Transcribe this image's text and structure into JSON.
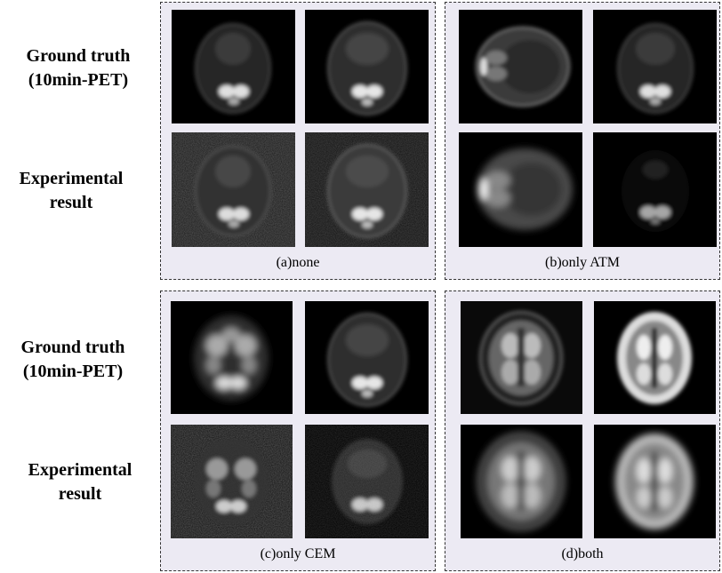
{
  "row_labels": {
    "top_ground_truth": [
      "Ground truth",
      "(10min-PET)"
    ],
    "top_experimental": [
      "Experimental",
      "result"
    ],
    "bottom_ground_truth": [
      "Ground truth",
      "(10min-PET)"
    ],
    "bottom_experimental": [
      "Experimental",
      "result"
    ]
  },
  "panels": {
    "a": {
      "caption": "(a)none"
    },
    "b": {
      "caption": "(b)only ATM"
    },
    "c": {
      "caption": "(c)only CEM"
    },
    "d": {
      "caption": "(d)both"
    }
  }
}
